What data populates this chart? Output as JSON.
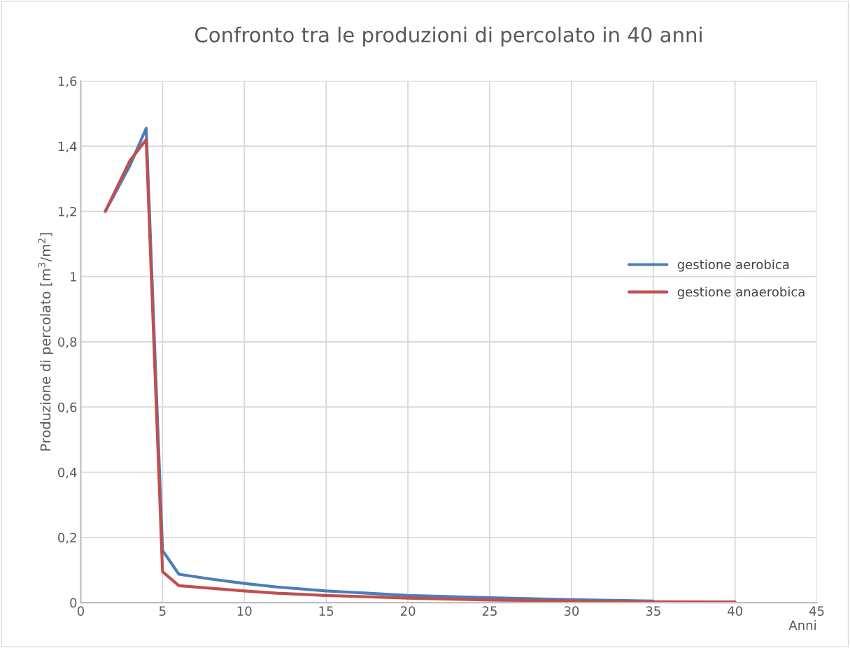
{
  "chart_data": {
    "type": "line",
    "title": "Confronto tra le produzioni di percolato in 40 anni",
    "xlabel": "Anni",
    "ylabel": "Produzione di percolato [m$^{3}$/m$^{2}$]",
    "x": [
      1.5,
      3,
      4,
      5,
      6,
      8,
      10,
      12,
      15,
      20,
      25,
      30,
      35,
      40
    ],
    "series": [
      {
        "name": "gestione aerobica",
        "color": "#4a7ebb",
        "values": [
          1.2,
          1.34,
          1.455,
          0.16,
          0.087,
          0.072,
          0.059,
          0.048,
          0.036,
          0.022,
          0.015,
          0.009,
          0.005,
          null
        ]
      },
      {
        "name": "gestione anaerobica",
        "color": "#c0504d",
        "values": [
          1.2,
          1.355,
          1.42,
          0.095,
          0.052,
          0.044,
          0.036,
          0.029,
          0.022,
          0.014,
          0.008,
          0.005,
          0.003,
          0.002
        ]
      }
    ],
    "xlim": [
      0,
      45
    ],
    "xticks": [
      0,
      5,
      10,
      15,
      20,
      25,
      30,
      35,
      40,
      45
    ],
    "ylim": [
      0,
      1.6
    ],
    "yticks": [
      {
        "value": 0,
        "label": "0"
      },
      {
        "value": 0.2,
        "label": "0,2"
      },
      {
        "value": 0.4,
        "label": "0,4"
      },
      {
        "value": 0.6,
        "label": "0,6"
      },
      {
        "value": 0.8,
        "label": "0,8"
      },
      {
        "value": 1,
        "label": "1"
      },
      {
        "value": 1.2,
        "label": "1,2"
      },
      {
        "value": 1.4,
        "label": "1,4"
      },
      {
        "value": 1.6,
        "label": "1,6"
      }
    ],
    "grid": true,
    "legend": "right",
    "marker": "none",
    "line_style": "solid"
  }
}
